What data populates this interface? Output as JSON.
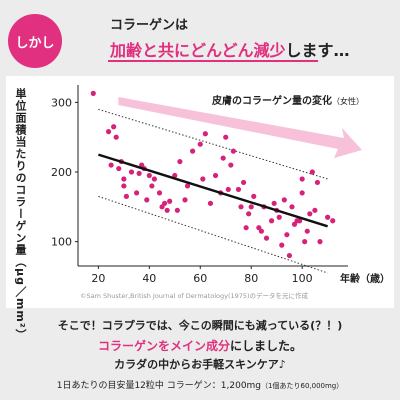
{
  "header": {
    "badge": "しかし",
    "line1": "コラーゲンは",
    "line2_accent": "加齢と共にどんどん減少",
    "line2_rest": "します…"
  },
  "colors": {
    "accent": "#e0307f",
    "arrow": "#f5b6d2",
    "points": "#d6237a"
  },
  "chart": {
    "title": "皮膚のコラーゲン量の変化",
    "title_note": "（女性）",
    "ylabel": "単位面積当たりのコラーゲン量（μg／mm²）",
    "xlabel_unit": "年齢（歳）",
    "source": "©Sam Shuster,British Journal of Dermatology(1975)のデータを元に作成"
  },
  "chart_data": {
    "type": "scatter",
    "title": "皮膚のコラーゲン量の変化（女性）",
    "xlabel": "年齢（歳）",
    "ylabel": "単位面積当たりのコラーゲン量（μg／mm²）",
    "xlim": [
      12,
      118
    ],
    "ylim": [
      65,
      325
    ],
    "xticks": [
      "20",
      "40",
      "60",
      "80",
      "100"
    ],
    "yticks": [
      "100",
      "200",
      "300"
    ],
    "x": [
      18,
      24,
      25,
      26,
      27,
      28,
      29,
      30,
      30,
      31,
      33,
      35,
      36,
      37,
      38,
      39,
      40,
      41,
      42,
      44,
      45,
      46,
      47,
      48,
      50,
      51,
      52,
      54,
      55,
      57,
      60,
      61,
      62,
      64,
      66,
      68,
      69,
      70,
      71,
      72,
      73,
      75,
      76,
      77,
      78,
      79,
      80,
      81,
      83,
      84,
      85,
      86,
      88,
      89,
      90,
      91,
      92,
      93,
      94,
      95,
      96,
      97,
      98,
      99,
      100,
      100,
      101,
      102,
      103,
      104,
      105,
      106,
      107,
      110,
      112
    ],
    "y": [
      313,
      258,
      210,
      265,
      250,
      205,
      215,
      180,
      190,
      165,
      200,
      170,
      198,
      210,
      205,
      160,
      195,
      180,
      190,
      170,
      150,
      155,
      145,
      158,
      195,
      145,
      215,
      160,
      180,
      230,
      240,
      190,
      255,
      155,
      195,
      170,
      220,
      250,
      175,
      210,
      230,
      175,
      150,
      185,
      120,
      140,
      150,
      165,
      120,
      115,
      150,
      105,
      130,
      155,
      145,
      135,
      95,
      160,
      110,
      80,
      150,
      125,
      130,
      130,
      170,
      190,
      100,
      115,
      140,
      200,
      145,
      185,
      100,
      135,
      130
    ],
    "trend": {
      "x": [
        20,
        110
      ],
      "y": [
        225,
        122
      ]
    },
    "band_upper": {
      "x": [
        20,
        110
      ],
      "y": [
        290,
        190
      ]
    },
    "band_lower": {
      "x": [
        20,
        110
      ],
      "y": [
        165,
        55
      ]
    }
  },
  "lower": {
    "line1": "そこで！コラプラでは、今この瞬間にも減っている(？！)",
    "line2_accent": "コラーゲンをメイン成分",
    "line2_rest": "にしました。",
    "line3": "カラダの中からお手軽スキンケア♪",
    "line4": "1日あたりの目安量12粒中  コラーゲン：1,200mg",
    "line4_small": "（1個あたり60,000mg）"
  }
}
